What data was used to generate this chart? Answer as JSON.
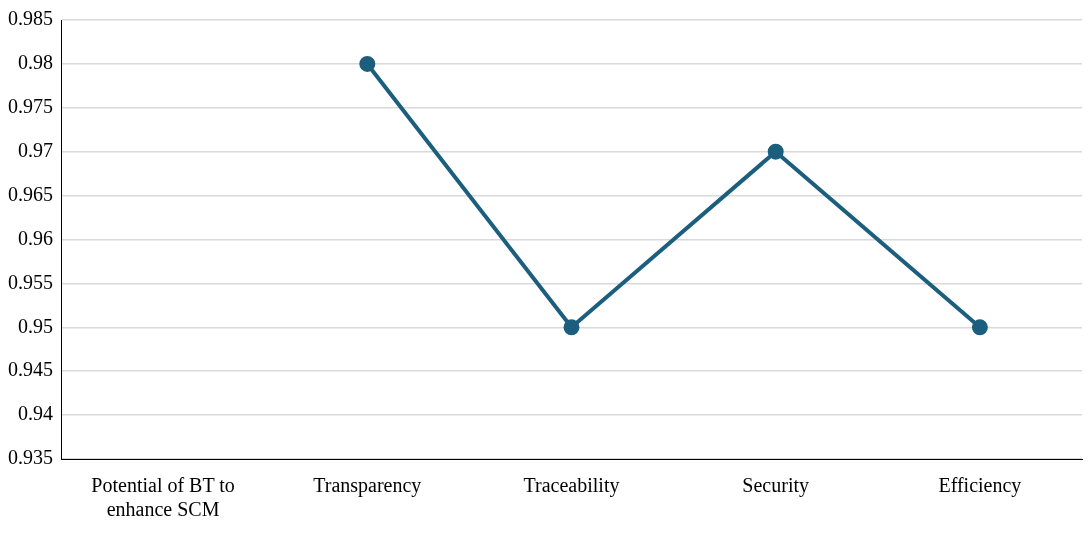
{
  "chart_data": {
    "type": "line",
    "categories": [
      "Potential of BT to enhance SCM",
      "Transparency",
      "Traceability",
      "Security",
      "Efficiency"
    ],
    "series": [
      {
        "color": "#1b5e7e",
        "values": [
          null,
          0.98,
          0.95,
          0.97,
          0.95
        ]
      }
    ],
    "ylim": [
      0.935,
      0.985
    ],
    "yticks": [
      0.935,
      0.94,
      0.945,
      0.95,
      0.955,
      0.96,
      0.965,
      0.97,
      0.975,
      0.98,
      0.985
    ],
    "grid": "y",
    "legend": false,
    "marker": "circle",
    "line_style": "solid"
  }
}
